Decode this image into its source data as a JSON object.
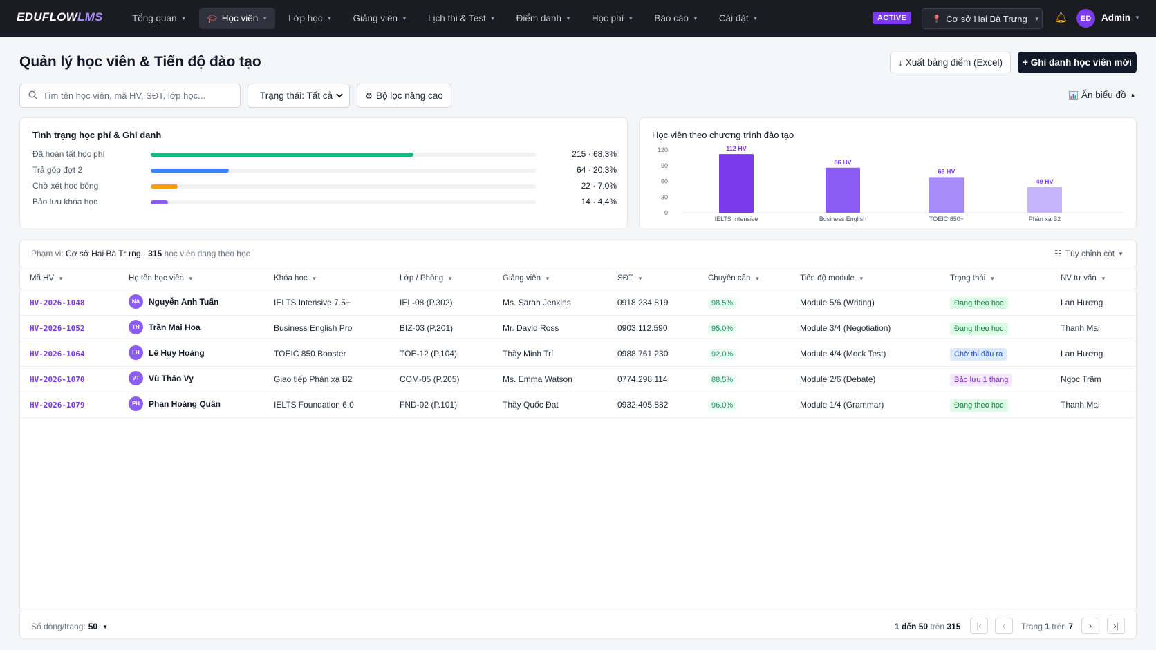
{
  "brand": {
    "name": "EDUFLOW",
    "suffix": "LMS"
  },
  "nav": {
    "items": [
      {
        "label": "Tổng quan"
      },
      {
        "label": "Học viên",
        "active": true
      },
      {
        "label": "Lớp học"
      },
      {
        "label": "Giảng viên"
      },
      {
        "label": "Lịch thi & Test"
      },
      {
        "label": "Điểm danh"
      },
      {
        "label": "Học phí"
      },
      {
        "label": "Báo cáo"
      },
      {
        "label": "Cài đặt"
      }
    ],
    "status_badge": "ACTIVE",
    "campus": "Cơ sở Hai Bà Trưng",
    "user_initials": "ED",
    "user_name": "Admin"
  },
  "header": {
    "title": "Quản lý học viên & Tiến độ đào tạo",
    "export_label": "Xuất bảng điểm (Excel)",
    "add_label": "+ Ghi danh học viên mới"
  },
  "toolbar": {
    "search_placeholder": "Tìm tên học viên, mã HV, SĐT, lớp học...",
    "status_filter": "Trạng thái: Tất cả",
    "advanced_filter": "Bộ lọc nâng cao",
    "hide_chart": "Ẩn biểu đồ"
  },
  "tuition": {
    "title": "Tình trạng học phí & Ghi danh",
    "rows": [
      {
        "label": "Đã hoàn tất học phí",
        "value": "215 · 68,3%",
        "fraction": 0.683,
        "color": "#10b981"
      },
      {
        "label": "Trả góp đợt 2",
        "value": "64 · 20,3%",
        "fraction": 0.203,
        "color": "#3b82f6"
      },
      {
        "label": "Chờ xét học bổng",
        "value": "22 · 7,0%",
        "fraction": 0.07,
        "color": "#f59e0b"
      },
      {
        "label": "Bảo lưu khóa học",
        "value": "14 · 4,4%",
        "fraction": 0.044,
        "color": "#8b5cf6"
      }
    ]
  },
  "chart_data": {
    "type": "bar",
    "title": "Học viên theo chương trình đào tạo",
    "categories": [
      "IELTS Intensive",
      "Business English",
      "TOEIC 850+",
      "Phản xạ B2"
    ],
    "values": [
      112,
      86,
      68,
      49
    ],
    "data_labels": [
      "112 HV",
      "86 HV",
      "68 HV",
      "49 HV"
    ],
    "colors": [
      "#7c3aed",
      "#8b5cf6",
      "#a78bfa",
      "#c4b5fd"
    ],
    "yticks": [
      0,
      30,
      60,
      90,
      120
    ],
    "ylim": [
      0,
      120
    ],
    "grid": false
  },
  "table": {
    "scope_prefix": "Phạm vi:",
    "scope_campus": "Cơ sở Hai Bà Trưng",
    "scope_count": "315",
    "scope_suffix": "học viên đang theo học",
    "customize": "Tùy chỉnh cột",
    "columns": [
      "Mã HV",
      "Họ tên học viên",
      "Khóa học",
      "Lớp / Phòng",
      "Giảng viên",
      "SĐT",
      "Chuyên cần",
      "Tiến độ module",
      "Trạng thái",
      "NV tư vấn"
    ],
    "rows": [
      {
        "code": "HV-2026-1048",
        "initials": "NA",
        "name": "Nguyễn Anh Tuấn",
        "course": "IELTS Intensive 7.5+",
        "room": "IEL-08 (P.302)",
        "teacher": "Ms. Sarah Jenkins",
        "phone": "0918.234.819",
        "attendance": "98.5%",
        "module": "Module 5/6 (Writing)",
        "status": "Đang theo học",
        "status_color": "green",
        "advisor": "Lan Hương"
      },
      {
        "code": "HV-2026-1052",
        "initials": "TH",
        "name": "Trần Mai Hoa",
        "course": "Business English Pro",
        "room": "BIZ-03 (P.201)",
        "teacher": "Mr. David Ross",
        "phone": "0903.112.590",
        "attendance": "95.0%",
        "module": "Module 3/4 (Negotiation)",
        "status": "Đang theo học",
        "status_color": "green",
        "advisor": "Thanh Mai"
      },
      {
        "code": "HV-2026-1064",
        "initials": "LH",
        "name": "Lê Huy Hoàng",
        "course": "TOEIC 850 Booster",
        "room": "TOE-12 (P.104)",
        "teacher": "Thầy Minh Trí",
        "phone": "0988.761.230",
        "attendance": "92.0%",
        "module": "Module 4/4 (Mock Test)",
        "status": "Chờ thi đầu ra",
        "status_color": "blue",
        "advisor": "Lan Hương"
      },
      {
        "code": "HV-2026-1070",
        "initials": "VT",
        "name": "Vũ Thảo Vy",
        "course": "Giao tiếp Phản xạ B2",
        "room": "COM-05 (P.205)",
        "teacher": "Ms. Emma Watson",
        "phone": "0774.298.114",
        "attendance": "88.5%",
        "module": "Module 2/6 (Debate)",
        "status": "Bảo lưu 1 tháng",
        "status_color": "purple",
        "advisor": "Ngọc Trâm"
      },
      {
        "code": "HV-2026-1079",
        "initials": "PH",
        "name": "Phan Hoàng Quân",
        "course": "IELTS Foundation 6.0",
        "room": "FND-02 (P.101)",
        "teacher": "Thầy Quốc Đạt",
        "phone": "0932.405.882",
        "attendance": "96.0%",
        "module": "Module 1/4 (Grammar)",
        "status": "Đang theo học",
        "status_color": "green",
        "advisor": "Thanh Mai"
      }
    ]
  },
  "footer": {
    "rows_per_page_label": "Số dòng/trang:",
    "rows_per_page": "50",
    "range_from": "1",
    "range_to_label": "đến",
    "range_to": "50",
    "range_of_label": "trên",
    "range_total": "315",
    "page_label": "Trang",
    "page_current": "1",
    "page_of_label": "trên",
    "page_total": "7"
  }
}
